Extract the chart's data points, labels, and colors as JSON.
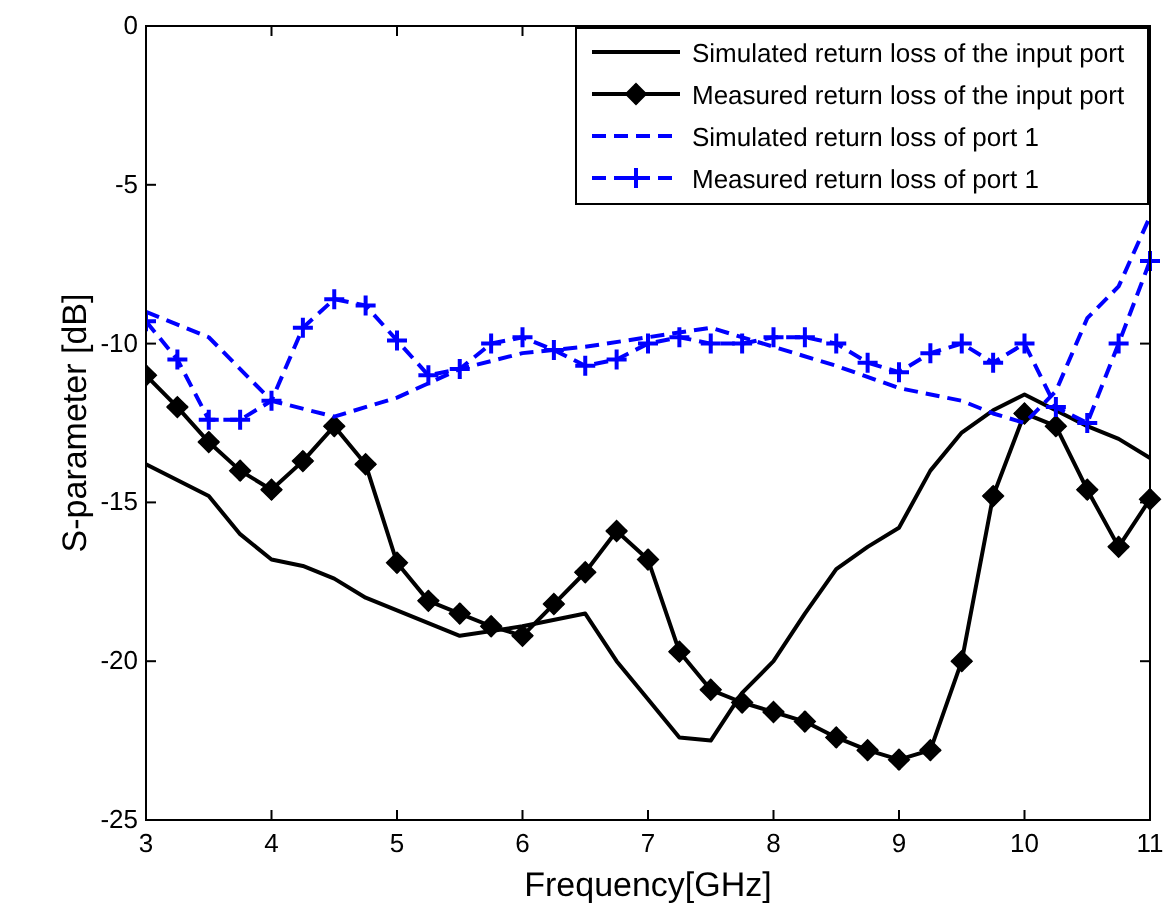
{
  "chart_data": {
    "type": "line",
    "xlabel": "Frequency[GHz]",
    "ylabel": "S-parameter [dB]",
    "xlim": [
      3,
      11
    ],
    "ylim": [
      -25,
      0
    ],
    "xticks": [
      3,
      4,
      5,
      6,
      7,
      8,
      9,
      10,
      11
    ],
    "yticks": [
      -25,
      -20,
      -15,
      -10,
      -5,
      0
    ],
    "grid": false,
    "legend": "top right",
    "series": [
      {
        "name": "Simulated return loss of the input port",
        "color": "#000000",
        "line_style": "solid",
        "marker": "none",
        "x": [
          3,
          3.5,
          3.75,
          4,
          4.25,
          4.5,
          4.75,
          5,
          5.5,
          6,
          6.5,
          6.75,
          7,
          7.25,
          7.5,
          7.75,
          8,
          8.25,
          8.5,
          8.75,
          9,
          9.25,
          9.5,
          9.75,
          10,
          10.5,
          10.75,
          11
        ],
        "values": [
          -13.8,
          -14.8,
          -16,
          -16.8,
          -17,
          -17.4,
          -18,
          -18.4,
          -19.2,
          -18.9,
          -18.5,
          -20,
          -21.2,
          -22.4,
          -22.5,
          -21,
          -20,
          -18.5,
          -17.1,
          -16.4,
          -15.8,
          -14,
          -12.8,
          -12.1,
          -11.6,
          -12.6,
          -13,
          -13.6
        ]
      },
      {
        "name": "Measured return loss of the input port",
        "color": "#000000",
        "line_style": "solid",
        "marker": "diamond",
        "x": [
          3,
          3.25,
          3.5,
          3.75,
          4,
          4.25,
          4.5,
          4.75,
          5,
          5.25,
          5.5,
          5.75,
          6,
          6.25,
          6.5,
          6.75,
          7,
          7.25,
          7.5,
          7.75,
          8,
          8.25,
          8.5,
          8.75,
          9,
          9.25,
          9.5,
          9.75,
          10,
          10.25,
          10.5,
          10.75,
          11
        ],
        "values": [
          -11,
          -12,
          -13.1,
          -14,
          -14.6,
          -13.7,
          -12.6,
          -13.8,
          -16.9,
          -18.1,
          -18.5,
          -18.9,
          -19.2,
          -18.2,
          -17.2,
          -15.9,
          -16.8,
          -19.7,
          -20.9,
          -21.3,
          -21.6,
          -21.9,
          -22.4,
          -22.8,
          -23.1,
          -22.8,
          -20,
          -14.8,
          -12.2,
          -12.6,
          -14.6,
          -16.4,
          -14.9
        ]
      },
      {
        "name": "Simulated return loss of port 1",
        "color": "#0000ff",
        "line_style": "dashed",
        "marker": "none",
        "x": [
          3,
          3.5,
          4,
          4.5,
          5,
          5.5,
          6,
          6.5,
          7,
          7.5,
          8,
          8.5,
          9,
          9.5,
          9.75,
          10,
          10.25,
          10.5,
          10.75,
          11
        ],
        "values": [
          -9,
          -9.8,
          -11.8,
          -12.3,
          -11.7,
          -10.8,
          -10.3,
          -10.1,
          -9.8,
          -9.5,
          -10.1,
          -10.7,
          -11.4,
          -11.8,
          -12.2,
          -12.5,
          -11.5,
          -9.2,
          -8.2,
          -6
        ]
      },
      {
        "name": "Measured return loss of port 1",
        "color": "#0000ff",
        "line_style": "dashed",
        "marker": "cross",
        "x": [
          3,
          3.25,
          3.5,
          3.75,
          4,
          4.25,
          4.5,
          4.75,
          5,
          5.25,
          5.5,
          5.75,
          6,
          6.25,
          6.5,
          6.75,
          7,
          7.25,
          7.5,
          7.75,
          8,
          8.25,
          8.5,
          8.75,
          9,
          9.25,
          9.5,
          9.75,
          10,
          10.25,
          10.5,
          10.75,
          11
        ],
        "values": [
          -9.3,
          -10.5,
          -12.4,
          -12.4,
          -11.8,
          -9.5,
          -8.6,
          -8.8,
          -9.9,
          -11,
          -10.8,
          -10,
          -9.8,
          -10.2,
          -10.7,
          -10.5,
          -10,
          -9.8,
          -10,
          -10,
          -9.8,
          -9.8,
          -10,
          -10.6,
          -10.9,
          -10.3,
          -10,
          -10.6,
          -10,
          -12,
          -12.5,
          -10,
          -7.4
        ]
      }
    ]
  }
}
